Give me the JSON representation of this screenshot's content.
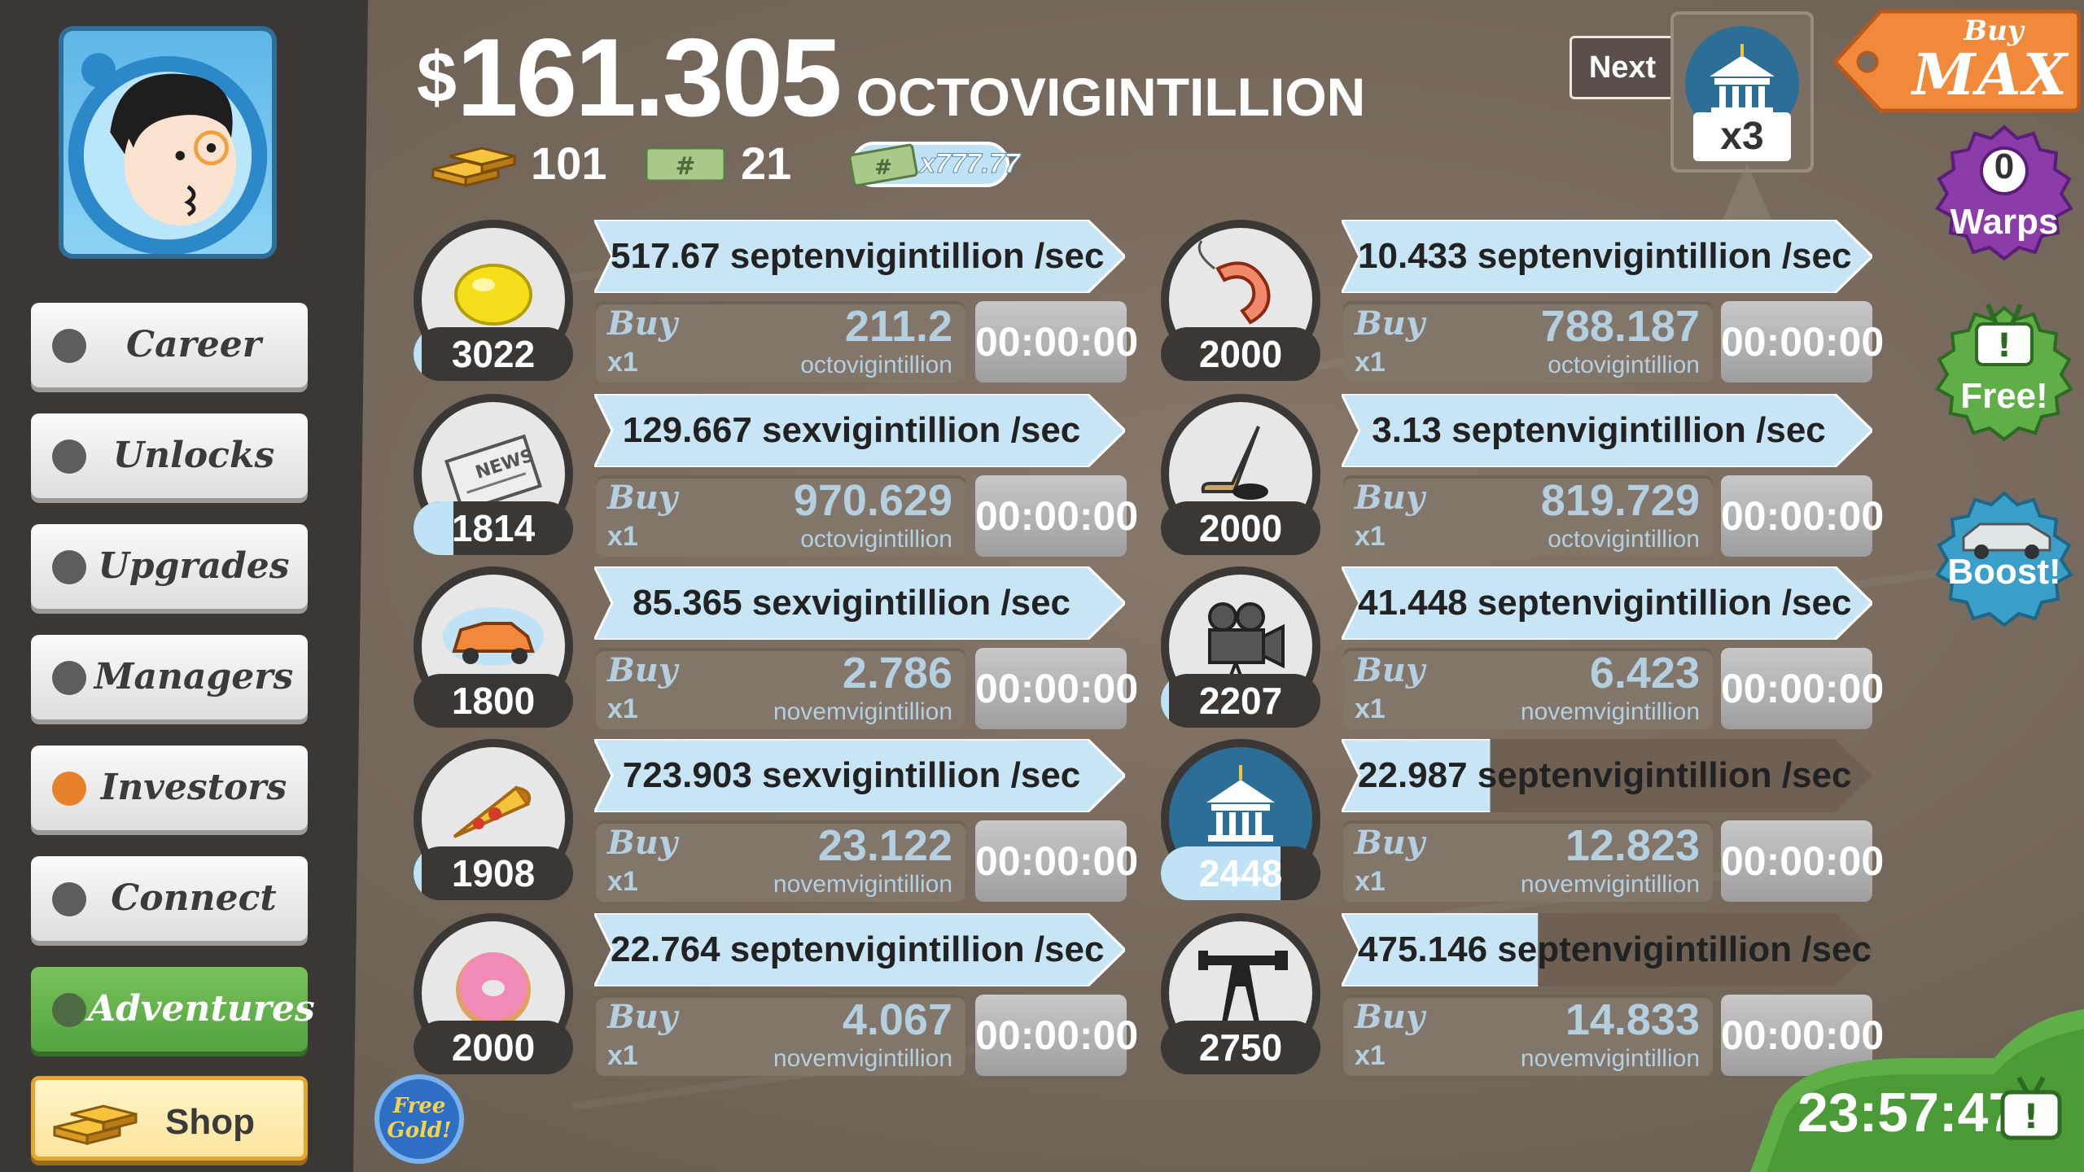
{
  "sidebar": {
    "items": [
      {
        "label": "Career",
        "accent": "#5d5d5d"
      },
      {
        "label": "Unlocks",
        "accent": "#5d5d5d"
      },
      {
        "label": "Upgrades",
        "accent": "#5d5d5d"
      },
      {
        "label": "Managers",
        "accent": "#5d5d5d"
      },
      {
        "label": "Investors",
        "accent": "#e8812c"
      },
      {
        "label": "Connect",
        "accent": "#5d5d5d"
      },
      {
        "label": "Adventures",
        "accent": "#4d6b44"
      }
    ],
    "shop_label": "Shop"
  },
  "header": {
    "currency_symbol": "$",
    "amount": "161.305",
    "unit": "OCTOVIGINTILLION",
    "gold": "101",
    "megabucks": "21",
    "multiplier": "x777.77",
    "next_label": "Next",
    "next_badge": "x3",
    "buy_max_top": "Buy",
    "buy_max_bottom": "MAX"
  },
  "side_buttons": {
    "warps_count": "0",
    "warps_label": "Warps",
    "free_label": "Free!",
    "boost_label": "Boost!",
    "free_gold": "Free Gold!"
  },
  "businesses": [
    {
      "icon": "lemon-icon",
      "count": "3022",
      "progress": 0.05,
      "rate": "517.67 septenvigintillion /sec",
      "buy": "Buy",
      "qty": "x1",
      "cost": "211.2",
      "cost_unit": "octovigintillion",
      "timer": "00:00:00",
      "rate_fill": 1.0
    },
    {
      "icon": "newspaper-icon",
      "count": "1814",
      "progress": 0.25,
      "rate": "129.667 sexvigintillion /sec",
      "buy": "Buy",
      "qty": "x1",
      "cost": "970.629",
      "cost_unit": "octovigintillion",
      "timer": "00:00:00",
      "rate_fill": 1.0
    },
    {
      "icon": "car-wash-icon",
      "count": "1800",
      "progress": 0.0,
      "rate": "85.365 sexvigintillion /sec",
      "buy": "Buy",
      "qty": "x1",
      "cost": "2.786",
      "cost_unit": "novemvigintillion",
      "timer": "00:00:00",
      "rate_fill": 1.0
    },
    {
      "icon": "pizza-icon",
      "count": "1908",
      "progress": 0.05,
      "rate": "723.903 sexvigintillion /sec",
      "buy": "Buy",
      "qty": "x1",
      "cost": "23.122",
      "cost_unit": "novemvigintillion",
      "timer": "00:00:00",
      "rate_fill": 1.0
    },
    {
      "icon": "donut-icon",
      "count": "2000",
      "progress": 0.0,
      "rate": "22.764 septenvigintillion /sec",
      "buy": "Buy",
      "qty": "x1",
      "cost": "4.067",
      "cost_unit": "novemvigintillion",
      "timer": "00:00:00",
      "rate_fill": 1.0
    },
    {
      "icon": "shrimp-icon",
      "count": "2000",
      "progress": 0.0,
      "rate": "10.433 septenvigintillion /sec",
      "buy": "Buy",
      "qty": "x1",
      "cost": "788.187",
      "cost_unit": "octovigintillion",
      "timer": "00:00:00",
      "rate_fill": 1.0
    },
    {
      "icon": "hockey-icon",
      "count": "2000",
      "progress": 0.0,
      "rate": "3.13 septenvigintillion /sec",
      "buy": "Buy",
      "qty": "x1",
      "cost": "819.729",
      "cost_unit": "octovigintillion",
      "timer": "00:00:00",
      "rate_fill": 1.0
    },
    {
      "icon": "movie-camera-icon",
      "count": "2207",
      "progress": 0.05,
      "rate": "41.448 septenvigintillion /sec",
      "buy": "Buy",
      "qty": "x1",
      "cost": "6.423",
      "cost_unit": "novemvigintillion",
      "timer": "00:00:00",
      "rate_fill": 1.0
    },
    {
      "icon": "bank-icon",
      "count": "2448",
      "progress": 0.75,
      "rate": "22.987 septenvigintillion /sec",
      "buy": "Buy",
      "qty": "x1",
      "cost": "12.823",
      "cost_unit": "novemvigintillion",
      "timer": "00:00:00",
      "rate_fill": 0.28
    },
    {
      "icon": "oil-rig-icon",
      "count": "2750",
      "progress": 0.0,
      "rate": "475.146 septenvigintillion /sec",
      "buy": "Buy",
      "qty": "x1",
      "cost": "14.833",
      "cost_unit": "novemvigintillion",
      "timer": "00:00:00",
      "rate_fill": 0.37
    }
  ],
  "clock": "23:57:47",
  "colors": {
    "accent_blue": "#bfe2f5",
    "active_green": "#5fae47",
    "buy_max_orange": "#f08a3a",
    "warps_purple": "#8b3ca8"
  }
}
